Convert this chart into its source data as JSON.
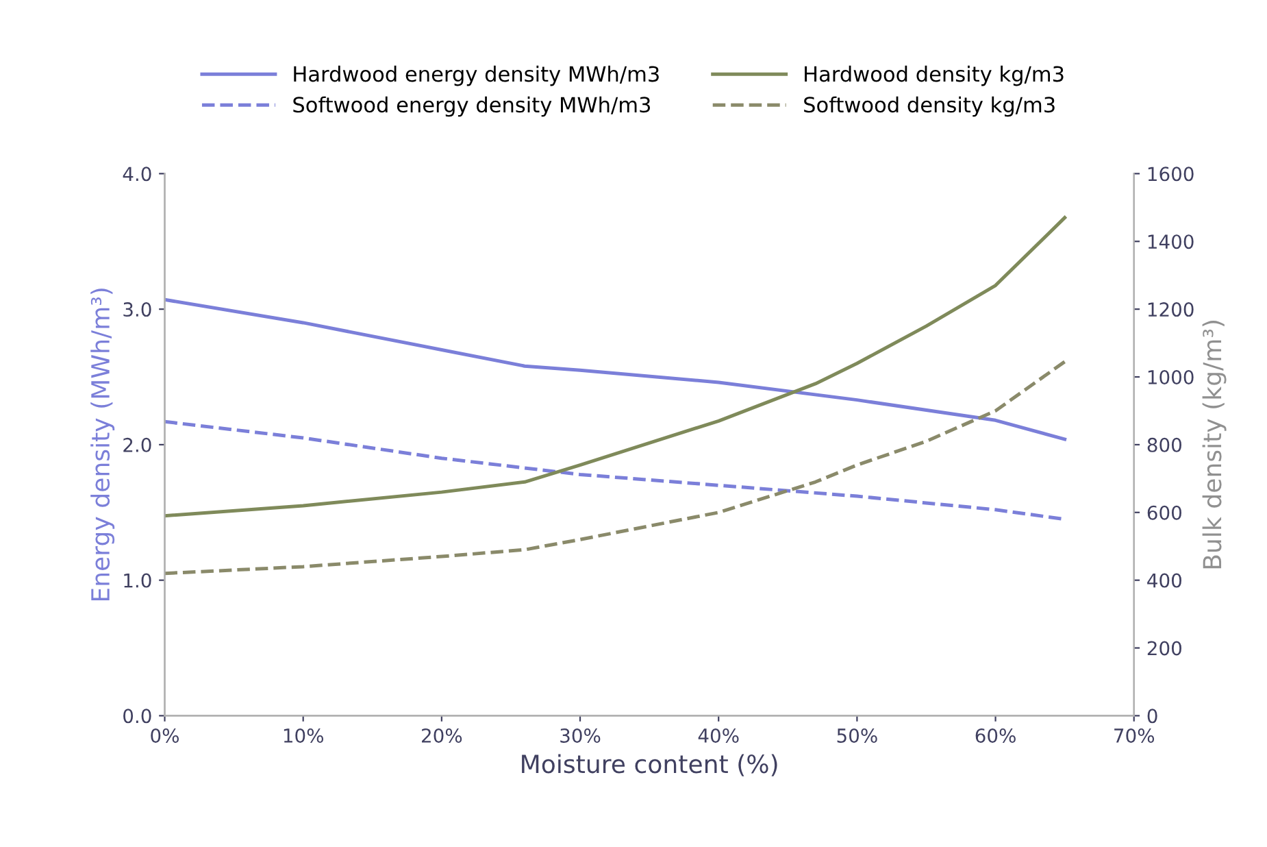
{
  "chart_data": {
    "type": "line",
    "xlabel": "Moisture content (%)",
    "ylabel": "Energy density (MWh/m³)",
    "y2label": "Bulk density (kg/m³)",
    "xlim": [
      0,
      70
    ],
    "xticks": [
      {
        "value": 0,
        "label": "0%"
      },
      {
        "value": 10,
        "label": "10%"
      },
      {
        "value": 20,
        "label": "20%"
      },
      {
        "value": 30,
        "label": "30%"
      },
      {
        "value": 40,
        "label": "40%"
      },
      {
        "value": 50,
        "label": "50%"
      },
      {
        "value": 60,
        "label": "60%"
      },
      {
        "value": 70,
        "label": "70%"
      }
    ],
    "ylim": [
      0,
      4
    ],
    "yticks": [
      {
        "value": 0,
        "label": "0.0"
      },
      {
        "value": 1,
        "label": "1.0"
      },
      {
        "value": 2,
        "label": "2.0"
      },
      {
        "value": 3,
        "label": "3.0"
      },
      {
        "value": 4,
        "label": "4.0"
      }
    ],
    "y2lim": [
      0,
      1600
    ],
    "y2ticks": [
      0,
      200,
      400,
      600,
      800,
      1000,
      1200,
      1400,
      1600
    ],
    "grid": false,
    "legend": "top",
    "series": [
      {
        "name": "Hardwood energy density MWh/m3",
        "color": "#7b7fd9",
        "line_style": "solid",
        "x": [
          0,
          10,
          20,
          26,
          30,
          40,
          50,
          60,
          65
        ],
        "values": [
          3.07,
          2.9,
          2.7,
          2.58,
          2.55,
          2.46,
          2.33,
          2.18,
          2.04
        ]
      },
      {
        "name": "Softwood energy density MWh/m3",
        "color": "#7b7fd9",
        "line_style": "dashed",
        "x": [
          0,
          10,
          20,
          30,
          40,
          50,
          60,
          65
        ],
        "values": [
          2.17,
          2.05,
          1.9,
          1.78,
          1.7,
          1.62,
          1.52,
          1.45
        ]
      },
      {
        "name": "Hardwood density kg/m3",
        "color": "#7f8a5a",
        "line_style": "solid",
        "axis": "y2",
        "x": [
          0,
          10,
          20,
          26,
          30,
          40,
          47,
          50,
          55,
          60,
          65
        ],
        "values": [
          590,
          620,
          660,
          690,
          740,
          870,
          980,
          1040,
          1150,
          1270,
          1470
        ]
      },
      {
        "name": "Softwood density kg/m3",
        "color": "#8a8a6a",
        "line_style": "dashed",
        "axis": "y2",
        "x": [
          0,
          10,
          20,
          26,
          30,
          40,
          47,
          50,
          55,
          60,
          65
        ],
        "values": [
          420,
          440,
          470,
          490,
          520,
          600,
          690,
          740,
          810,
          900,
          1045
        ]
      }
    ]
  }
}
